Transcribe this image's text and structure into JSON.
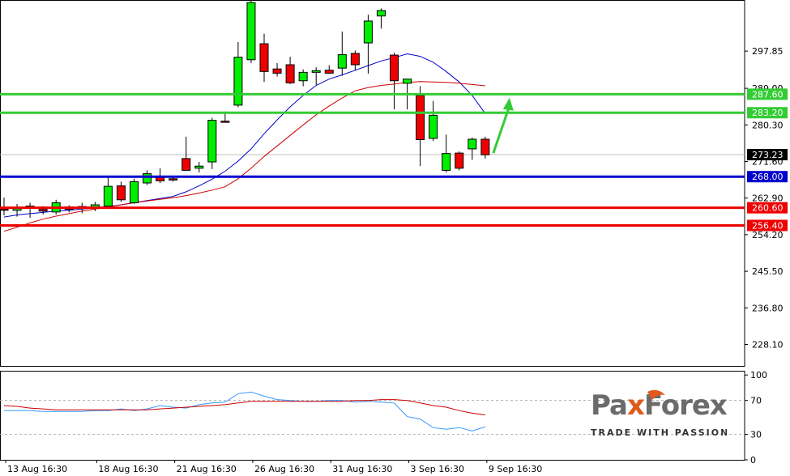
{
  "chart_data": {
    "type": "candlestick",
    "instrument_note": "",
    "price_axis": {
      "ticks": [
        "297.85",
        "289.00",
        "280.30",
        "271.60",
        "262.90",
        "254.20",
        "245.50",
        "236.80",
        "228.10"
      ],
      "tick_values": [
        297.85,
        289.0,
        280.3,
        271.6,
        262.9,
        254.2,
        245.5,
        236.8,
        228.1
      ],
      "range": [
        223.0,
        310.0
      ]
    },
    "time_axis": {
      "labels": [
        "13 Aug 16:30",
        "18 Aug 16:30",
        "21 Aug 16:30",
        "26 Aug 16:30",
        "31 Aug 16:30",
        "3 Sep 16:30",
        "9 Sep 16:30"
      ],
      "label_bar_index": [
        0,
        7,
        13,
        19,
        25,
        31,
        37
      ]
    },
    "candles": [
      {
        "o": 260.3,
        "h": 263.0,
        "l": 258.8,
        "c": 260.0
      },
      {
        "o": 260.0,
        "h": 261.5,
        "l": 258.5,
        "c": 260.5
      },
      {
        "o": 260.5,
        "h": 261.8,
        "l": 258.2,
        "c": 261.0
      },
      {
        "o": 260.2,
        "h": 261.0,
        "l": 259.0,
        "c": 259.8
      },
      {
        "o": 259.6,
        "h": 262.5,
        "l": 259.0,
        "c": 261.8
      },
      {
        "o": 260.8,
        "h": 261.2,
        "l": 259.5,
        "c": 260.2
      },
      {
        "o": 260.5,
        "h": 261.8,
        "l": 259.3,
        "c": 260.9
      },
      {
        "o": 260.7,
        "h": 262.0,
        "l": 259.8,
        "c": 261.3
      },
      {
        "o": 261.0,
        "h": 268.0,
        "l": 260.5,
        "c": 265.7
      },
      {
        "o": 265.8,
        "h": 266.8,
        "l": 262.0,
        "c": 262.5
      },
      {
        "o": 261.8,
        "h": 267.5,
        "l": 261.5,
        "c": 266.8
      },
      {
        "o": 266.5,
        "h": 269.5,
        "l": 266.0,
        "c": 268.7
      },
      {
        "o": 268.0,
        "h": 270.0,
        "l": 266.5,
        "c": 267.0
      },
      {
        "o": 267.5,
        "h": 268.0,
        "l": 266.8,
        "c": 267.2
      },
      {
        "o": 272.3,
        "h": 277.5,
        "l": 269.5,
        "c": 269.5
      },
      {
        "o": 270.0,
        "h": 271.5,
        "l": 269.0,
        "c": 270.5
      },
      {
        "o": 271.5,
        "h": 282.0,
        "l": 269.8,
        "c": 281.4
      },
      {
        "o": 281.2,
        "h": 283.5,
        "l": 281.0,
        "c": 281.0
      },
      {
        "o": 285.0,
        "h": 300.0,
        "l": 284.5,
        "c": 296.4
      },
      {
        "o": 295.8,
        "h": 310.0,
        "l": 295.0,
        "c": 309.4
      },
      {
        "o": 299.6,
        "h": 302.0,
        "l": 290.5,
        "c": 293.0
      },
      {
        "o": 293.6,
        "h": 295.0,
        "l": 291.8,
        "c": 292.6
      },
      {
        "o": 294.6,
        "h": 296.5,
        "l": 290.0,
        "c": 290.3
      },
      {
        "o": 290.8,
        "h": 293.5,
        "l": 289.5,
        "c": 292.8
      },
      {
        "o": 292.8,
        "h": 294.0,
        "l": 289.8,
        "c": 293.2
      },
      {
        "o": 293.3,
        "h": 294.5,
        "l": 292.5,
        "c": 292.6
      },
      {
        "o": 293.8,
        "h": 302.5,
        "l": 292.0,
        "c": 297.0
      },
      {
        "o": 297.3,
        "h": 298.0,
        "l": 293.2,
        "c": 294.6
      },
      {
        "o": 299.8,
        "h": 306.5,
        "l": 292.5,
        "c": 305.0
      },
      {
        "o": 306.2,
        "h": 308.0,
        "l": 303.2,
        "c": 307.5
      },
      {
        "o": 296.9,
        "h": 297.5,
        "l": 284.0,
        "c": 290.8
      },
      {
        "o": 290.2,
        "h": 291.0,
        "l": 284.0,
        "c": 291.2
      },
      {
        "o": 287.3,
        "h": 289.5,
        "l": 270.5,
        "c": 276.8
      },
      {
        "o": 277.1,
        "h": 286.0,
        "l": 276.5,
        "c": 282.6
      },
      {
        "o": 269.5,
        "h": 278.0,
        "l": 269.0,
        "c": 273.5
      },
      {
        "o": 273.6,
        "h": 274.0,
        "l": 269.5,
        "c": 270.0
      },
      {
        "o": 274.6,
        "h": 277.3,
        "l": 272.0,
        "c": 276.9
      },
      {
        "o": 276.9,
        "h": 277.5,
        "l": 272.3,
        "c": 273.2
      }
    ],
    "moving_averages": [
      {
        "name": "",
        "color": "#0000cc",
        "values": [
          258.4,
          258.9,
          259.2,
          259.5,
          259.8,
          260.0,
          260.3,
          260.6,
          260.9,
          261.3,
          261.8,
          262.3,
          262.8,
          263.3,
          264.4,
          265.8,
          267.4,
          269.3,
          271.7,
          274.6,
          278.2,
          281.5,
          284.6,
          287.3,
          289.7,
          291.2,
          292.2,
          293.3,
          294.4,
          295.5,
          296.3,
          297.2,
          296.6,
          295.2,
          293.0,
          290.5,
          287.3,
          283.0
        ]
      },
      {
        "name": "",
        "color": "#cc0000",
        "values": [
          255.0,
          256.0,
          257.0,
          257.9,
          258.6,
          259.2,
          259.8,
          260.3,
          260.8,
          261.3,
          261.8,
          262.2,
          262.6,
          263.0,
          263.5,
          264.1,
          264.8,
          265.6,
          267.5,
          270.0,
          272.8,
          275.3,
          277.8,
          280.3,
          282.7,
          284.8,
          286.7,
          288.4,
          289.2,
          289.7,
          290.0,
          290.4,
          290.6,
          290.5,
          290.4,
          290.2,
          289.9,
          289.6
        ]
      }
    ],
    "levels": [
      {
        "value": 287.6,
        "label": "287.60",
        "color": "#33cc33"
      },
      {
        "value": 283.2,
        "label": "283.20",
        "color": "#33cc33"
      },
      {
        "value": 268.0,
        "label": "268.00",
        "color": "#0000cc"
      },
      {
        "value": 260.6,
        "label": "260.60",
        "color": "#ee0000"
      },
      {
        "value": 256.4,
        "label": "256.40",
        "color": "#ee0000"
      }
    ],
    "current_price": {
      "value": 273.23,
      "label": "273.23"
    },
    "forecast_arrow": {
      "color": "#33cc33",
      "from_bar": 37,
      "from_price": 273.6,
      "to_price": 286.0
    },
    "indicator": {
      "ticks": [
        "100",
        "70",
        "30",
        "0"
      ],
      "tick_values": [
        100,
        70,
        30,
        0
      ],
      "levels": [
        70,
        30
      ],
      "lines": [
        {
          "name": "",
          "color": "#3399ff",
          "values": [
            58,
            58,
            58,
            57,
            57,
            57,
            57,
            58,
            58,
            60,
            58,
            60,
            64,
            62,
            61,
            65,
            67,
            68,
            78,
            80,
            75,
            71,
            70,
            69,
            69,
            70,
            70,
            68,
            69,
            68,
            67,
            51,
            48,
            38,
            36,
            38,
            34,
            39
          ]
        },
        {
          "name": "",
          "color": "#cc0000",
          "values": [
            64,
            63,
            61,
            60,
            59,
            59,
            59,
            59,
            59,
            59,
            59,
            59,
            60,
            61,
            62,
            63,
            64,
            65,
            67,
            69,
            69,
            69,
            69,
            69,
            69,
            69,
            69,
            70,
            70,
            71,
            71,
            70,
            67,
            64,
            62,
            58,
            55,
            53
          ]
        }
      ],
      "range": [
        0,
        105
      ]
    }
  },
  "logo": {
    "brand_first": "Pa",
    "brand_x": "x",
    "brand_rest": "Forex",
    "tagline": "TRADE WITH PASSION",
    "accent": "#e05a1b",
    "word_color": "#6b6b6b"
  }
}
